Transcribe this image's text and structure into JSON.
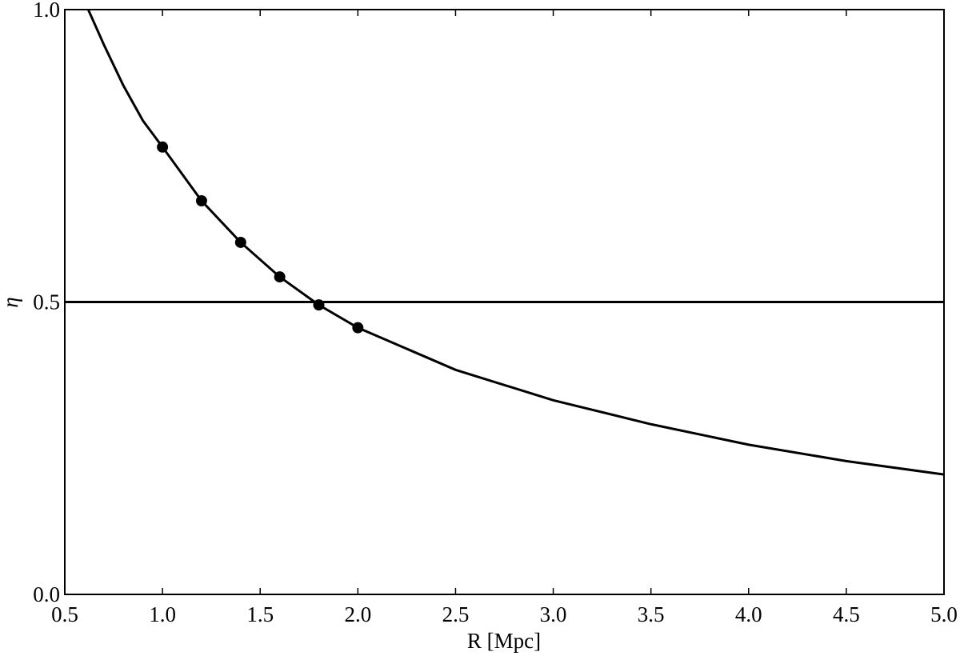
{
  "chart_data": {
    "type": "line",
    "xlabel": "R [Mpc]",
    "ylabel": "η",
    "xlim": [
      0.5,
      5.0
    ],
    "xticks": [
      0.5,
      {
        "value": 1.0,
        "label": "1.0"
      },
      1.5,
      {
        "value": 2.0,
        "label": "2.0"
      },
      2.5,
      {
        "value": 3.0,
        "label": "3.0"
      },
      3.5,
      {
        "value": 4.0,
        "label": "4.0"
      },
      4.5,
      {
        "value": 5.0,
        "label": "5.0"
      }
    ],
    "ylim": [
      0.0,
      1.0
    ],
    "yticks": [
      {
        "value": 0.0,
        "label": "0.0"
      },
      0.5,
      {
        "value": 1.0,
        "label": "1.0"
      }
    ],
    "hline": 0.5,
    "series": [
      {
        "type": "line",
        "color": "#000000",
        "x": [
          0.62,
          0.7,
          0.8,
          0.9,
          1.0,
          1.2,
          1.4,
          1.6,
          1.8,
          2.0,
          2.5,
          3.0,
          3.5,
          4.0,
          4.5,
          5.0
        ],
        "values": [
          1.0,
          0.94,
          0.87,
          0.81,
          0.765,
          0.673,
          0.602,
          0.543,
          0.495,
          0.456,
          0.384,
          0.332,
          0.291,
          0.256,
          0.228,
          0.205
        ]
      },
      {
        "type": "scatter",
        "color": "#000000",
        "x": [
          1.0,
          1.2,
          1.4,
          1.6,
          1.8,
          2.0
        ],
        "values": [
          0.765,
          0.673,
          0.602,
          0.543,
          0.495,
          0.456
        ]
      }
    ]
  }
}
